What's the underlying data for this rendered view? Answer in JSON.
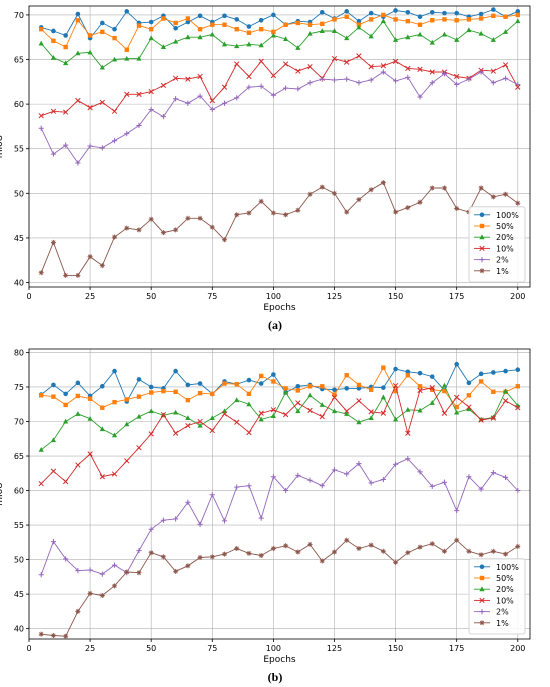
{
  "captions": [
    "(a)",
    "(b)"
  ],
  "colors": {
    "100%": "#1f77b4",
    "50%": "#ff7f0e",
    "20%": "#2ca02c",
    "10%": "#d62728",
    "2%": "#9467bd",
    "1%": "#8c564b"
  },
  "chart_data": [
    {
      "type": "line",
      "xlabel": "Epochs",
      "ylabel": "mIoU",
      "xlim": [
        0,
        205
      ],
      "ylim": [
        39.5,
        71
      ],
      "xticks": [
        0,
        25,
        50,
        75,
        100,
        125,
        150,
        175,
        200
      ],
      "yticks": [
        40,
        45,
        50,
        55,
        60,
        65,
        70
      ],
      "grid": true,
      "legend": "bottom-right",
      "x": [
        5,
        10,
        15,
        20,
        25,
        30,
        35,
        40,
        45,
        50,
        55,
        60,
        65,
        70,
        75,
        80,
        85,
        90,
        95,
        100,
        105,
        110,
        115,
        120,
        125,
        130,
        135,
        140,
        145,
        150,
        155,
        160,
        165,
        170,
        175,
        180,
        185,
        190,
        195,
        200
      ],
      "series": [
        {
          "name": "100%",
          "marker": "circle",
          "values": [
            68.6,
            68.2,
            67.7,
            70.1,
            67.4,
            69.1,
            68.4,
            70.4,
            69.1,
            69.2,
            69.9,
            68.5,
            69.2,
            69.9,
            69.2,
            69.9,
            69.5,
            68.7,
            69.4,
            70.0,
            68.9,
            69.3,
            69.2,
            70.3,
            69.6,
            70.4,
            69.3,
            70.2,
            69.8,
            70.5,
            70.3,
            69.8,
            70.3,
            70.2,
            70.2,
            69.8,
            70.1,
            70.6,
            69.8,
            70.4
          ]
        },
        {
          "name": "50%",
          "marker": "square",
          "values": [
            68.4,
            67.1,
            66.4,
            69.4,
            67.7,
            68.1,
            67.4,
            66.1,
            68.8,
            68.4,
            69.6,
            69.1,
            69.6,
            68.4,
            68.9,
            68.9,
            68.4,
            68.0,
            68.4,
            68.1,
            68.9,
            69.1,
            68.9,
            69.0,
            69.5,
            69.8,
            68.9,
            69.5,
            70.0,
            69.5,
            69.3,
            68.9,
            69.4,
            69.5,
            69.4,
            69.5,
            69.6,
            69.9,
            69.8,
            70.0
          ]
        },
        {
          "name": "20%",
          "marker": "triangle",
          "values": [
            66.8,
            65.2,
            64.6,
            65.7,
            65.8,
            64.1,
            65.0,
            65.1,
            65.1,
            67.4,
            66.4,
            67.0,
            67.5,
            67.5,
            67.8,
            66.7,
            66.5,
            66.7,
            66.6,
            67.7,
            67.3,
            66.3,
            67.9,
            68.2,
            68.2,
            67.4,
            68.6,
            67.6,
            69.3,
            67.2,
            67.5,
            67.8,
            66.9,
            67.8,
            67.2,
            68.3,
            67.9,
            67.2,
            68.1,
            69.3
          ]
        },
        {
          "name": "10%",
          "marker": "x",
          "values": [
            58.7,
            59.2,
            59.1,
            60.4,
            59.6,
            60.2,
            59.2,
            61.1,
            61.1,
            61.4,
            62.1,
            62.9,
            62.8,
            63.1,
            60.4,
            61.9,
            64.5,
            63.1,
            64.8,
            63.2,
            64.5,
            63.7,
            64.2,
            62.9,
            65.1,
            64.7,
            65.4,
            64.2,
            64.3,
            64.8,
            64.0,
            63.9,
            63.6,
            63.6,
            63.1,
            62.9,
            63.8,
            63.7,
            64.4,
            61.9
          ]
        },
        {
          "name": "2%",
          "marker": "plus",
          "values": [
            57.3,
            54.4,
            55.4,
            53.4,
            55.3,
            55.1,
            55.9,
            56.7,
            57.6,
            59.4,
            58.6,
            60.6,
            60.1,
            60.9,
            59.4,
            60.1,
            60.7,
            61.9,
            62.0,
            61.0,
            61.8,
            61.7,
            62.4,
            62.8,
            62.7,
            62.8,
            62.4,
            62.7,
            63.6,
            62.6,
            63.0,
            60.8,
            62.4,
            63.4,
            62.2,
            62.8,
            63.6,
            62.4,
            62.9,
            62.2
          ]
        },
        {
          "name": "1%",
          "marker": "star",
          "values": [
            41.1,
            44.5,
            40.8,
            40.8,
            42.9,
            41.9,
            45.1,
            46.1,
            45.9,
            47.1,
            45.6,
            45.9,
            47.2,
            47.2,
            46.2,
            44.8,
            47.6,
            47.8,
            49.1,
            47.8,
            47.6,
            48.1,
            49.9,
            50.7,
            50.0,
            47.9,
            49.3,
            50.4,
            51.2,
            47.9,
            48.4,
            49.0,
            50.6,
            50.6,
            48.3,
            47.9,
            50.6,
            49.6,
            49.9,
            48.9
          ]
        }
      ]
    },
    {
      "type": "line",
      "xlabel": "Epochs",
      "ylabel": "mIoU",
      "xlim": [
        0,
        205
      ],
      "ylim": [
        38.5,
        80.5
      ],
      "xticks": [
        0,
        25,
        50,
        75,
        100,
        125,
        150,
        175,
        200
      ],
      "yticks": [
        40,
        45,
        50,
        55,
        60,
        65,
        70,
        75,
        80
      ],
      "grid": true,
      "legend": "bottom-right",
      "x": [
        5,
        10,
        15,
        20,
        25,
        30,
        35,
        40,
        45,
        50,
        55,
        60,
        65,
        70,
        75,
        80,
        85,
        90,
        95,
        100,
        105,
        110,
        115,
        120,
        125,
        130,
        135,
        140,
        145,
        150,
        155,
        160,
        165,
        170,
        175,
        180,
        185,
        190,
        195,
        200
      ],
      "series": [
        {
          "name": "100%",
          "marker": "circle",
          "values": [
            73.9,
            75.3,
            74.0,
            75.6,
            73.7,
            75.1,
            77.3,
            72.9,
            76.1,
            75.0,
            74.8,
            77.3,
            75.3,
            75.5,
            74.0,
            75.8,
            75.4,
            76.0,
            75.5,
            76.8,
            74.2,
            75.1,
            75.3,
            74.7,
            74.6,
            74.8,
            74.8,
            75.0,
            74.9,
            77.6,
            77.2,
            77.0,
            76.5,
            74.5,
            78.3,
            75.6,
            76.9,
            77.1,
            77.3,
            77.5
          ]
        },
        {
          "name": "50%",
          "marker": "square",
          "values": [
            73.8,
            73.6,
            72.4,
            73.7,
            73.3,
            72.0,
            72.8,
            73.2,
            73.6,
            74.2,
            74.4,
            74.3,
            73.1,
            74.1,
            74.0,
            75.5,
            75.4,
            74.0,
            76.6,
            75.8,
            74.8,
            74.5,
            75.1,
            75.1,
            73.9,
            76.7,
            75.3,
            74.6,
            77.8,
            74.4,
            76.7,
            75.1,
            74.6,
            74.4,
            72.1,
            73.8,
            75.8,
            74.3,
            74.3,
            75.1
          ]
        },
        {
          "name": "20%",
          "marker": "triangle",
          "values": [
            65.9,
            67.3,
            70.0,
            71.1,
            70.4,
            68.9,
            68.0,
            69.6,
            70.7,
            71.5,
            70.9,
            71.3,
            70.5,
            69.4,
            70.5,
            71.5,
            73.1,
            72.5,
            70.3,
            70.8,
            74.2,
            71.5,
            73.8,
            72.4,
            71.5,
            71.1,
            69.9,
            70.5,
            73.5,
            70.3,
            71.7,
            71.6,
            72.7,
            75.2,
            71.3,
            71.8,
            70.3,
            70.6,
            74.4,
            72.3
          ]
        },
        {
          "name": "10%",
          "marker": "x",
          "values": [
            61.0,
            62.8,
            61.3,
            63.7,
            65.3,
            62.0,
            62.4,
            64.3,
            66.2,
            68.2,
            71.0,
            68.3,
            69.4,
            70.0,
            68.7,
            71.1,
            69.9,
            68.4,
            71.2,
            71.7,
            71.0,
            72.7,
            71.6,
            70.7,
            73.5,
            71.5,
            73.0,
            71.4,
            71.2,
            75.2,
            68.3,
            74.5,
            74.9,
            71.2,
            73.5,
            72.1,
            70.2,
            70.5,
            73.0,
            72.0
          ]
        },
        {
          "name": "2%",
          "marker": "plus",
          "values": [
            47.8,
            52.6,
            50.1,
            48.4,
            48.5,
            47.9,
            49.2,
            48.1,
            51.3,
            54.4,
            55.7,
            55.9,
            58.3,
            55.1,
            59.4,
            55.6,
            60.5,
            60.7,
            56.0,
            62.0,
            60.0,
            62.2,
            61.5,
            60.7,
            63.0,
            62.4,
            63.9,
            61.1,
            61.6,
            63.8,
            64.6,
            62.7,
            60.6,
            61.2,
            57.1,
            62.0,
            60.2,
            62.6,
            61.9,
            60.0
          ]
        },
        {
          "name": "1%",
          "marker": "star",
          "values": [
            39.2,
            39.0,
            38.9,
            42.5,
            45.1,
            44.8,
            46.2,
            48.2,
            48.1,
            51.0,
            50.4,
            48.3,
            49.1,
            50.3,
            50.4,
            50.8,
            51.6,
            50.9,
            50.6,
            51.6,
            52.0,
            51.1,
            52.2,
            49.8,
            51.1,
            52.8,
            51.6,
            52.1,
            51.2,
            49.6,
            51.0,
            51.8,
            52.3,
            51.2,
            52.8,
            51.2,
            50.7,
            51.2,
            50.8,
            51.9
          ]
        }
      ]
    }
  ]
}
